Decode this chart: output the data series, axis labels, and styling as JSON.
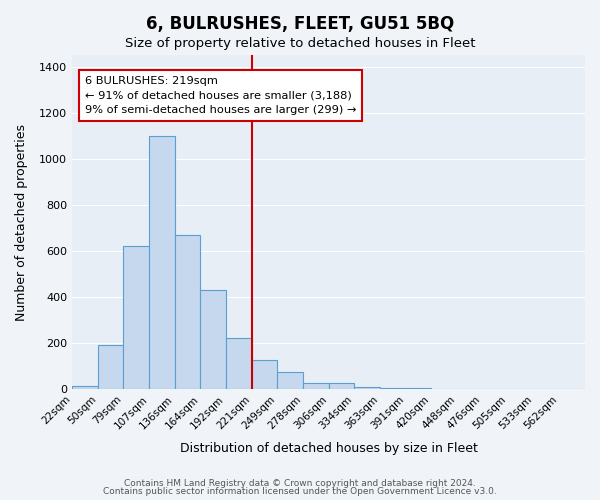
{
  "title": "6, BULRUSHES, FLEET, GU51 5BQ",
  "subtitle": "Size of property relative to detached houses in Fleet",
  "xlabel": "Distribution of detached houses by size in Fleet",
  "ylabel": "Number of detached properties",
  "bar_color": "#c5d8ed",
  "bar_edge_color": "#5a9fd4",
  "fig_bg_color": "#f0f4f8",
  "ax_bg_color": "#e8eef5",
  "grid_color": "#ffffff",
  "bins": [
    "22sqm",
    "50sqm",
    "79sqm",
    "107sqm",
    "136sqm",
    "164sqm",
    "192sqm",
    "221sqm",
    "249sqm",
    "278sqm",
    "306sqm",
    "334sqm",
    "363sqm",
    "391sqm",
    "420sqm",
    "448sqm",
    "476sqm",
    "505sqm",
    "533sqm",
    "562sqm"
  ],
  "bar_heights": [
    15,
    193,
    620,
    1100,
    670,
    430,
    220,
    125,
    75,
    28,
    28,
    10,
    5,
    5,
    0,
    0,
    0,
    0,
    0,
    0
  ],
  "ylim": [
    0,
    1450
  ],
  "yticks": [
    0,
    200,
    400,
    600,
    800,
    1000,
    1200,
    1400
  ],
  "vline_x": 7,
  "vline_color": "#cc0000",
  "annotation_title": "6 BULRUSHES: 219sqm",
  "annotation_line1": "← 91% of detached houses are smaller (3,188)",
  "annotation_line2": "9% of semi-detached houses are larger (299) →",
  "annotation_box_color": "#ffffff",
  "annotation_box_edge": "#cc0000",
  "footer1": "Contains HM Land Registry data © Crown copyright and database right 2024.",
  "footer2": "Contains public sector information licensed under the Open Government Licence v3.0."
}
